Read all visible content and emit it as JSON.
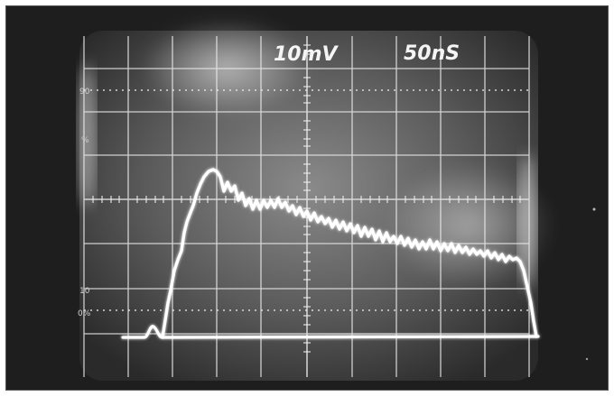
{
  "scope": {
    "volts_per_div": "10mV",
    "time_per_div": "50nS",
    "graticule_labels": {
      "top_90": "90",
      "pct_100": "%",
      "low_10": "10",
      "zero": "0%"
    }
  }
}
